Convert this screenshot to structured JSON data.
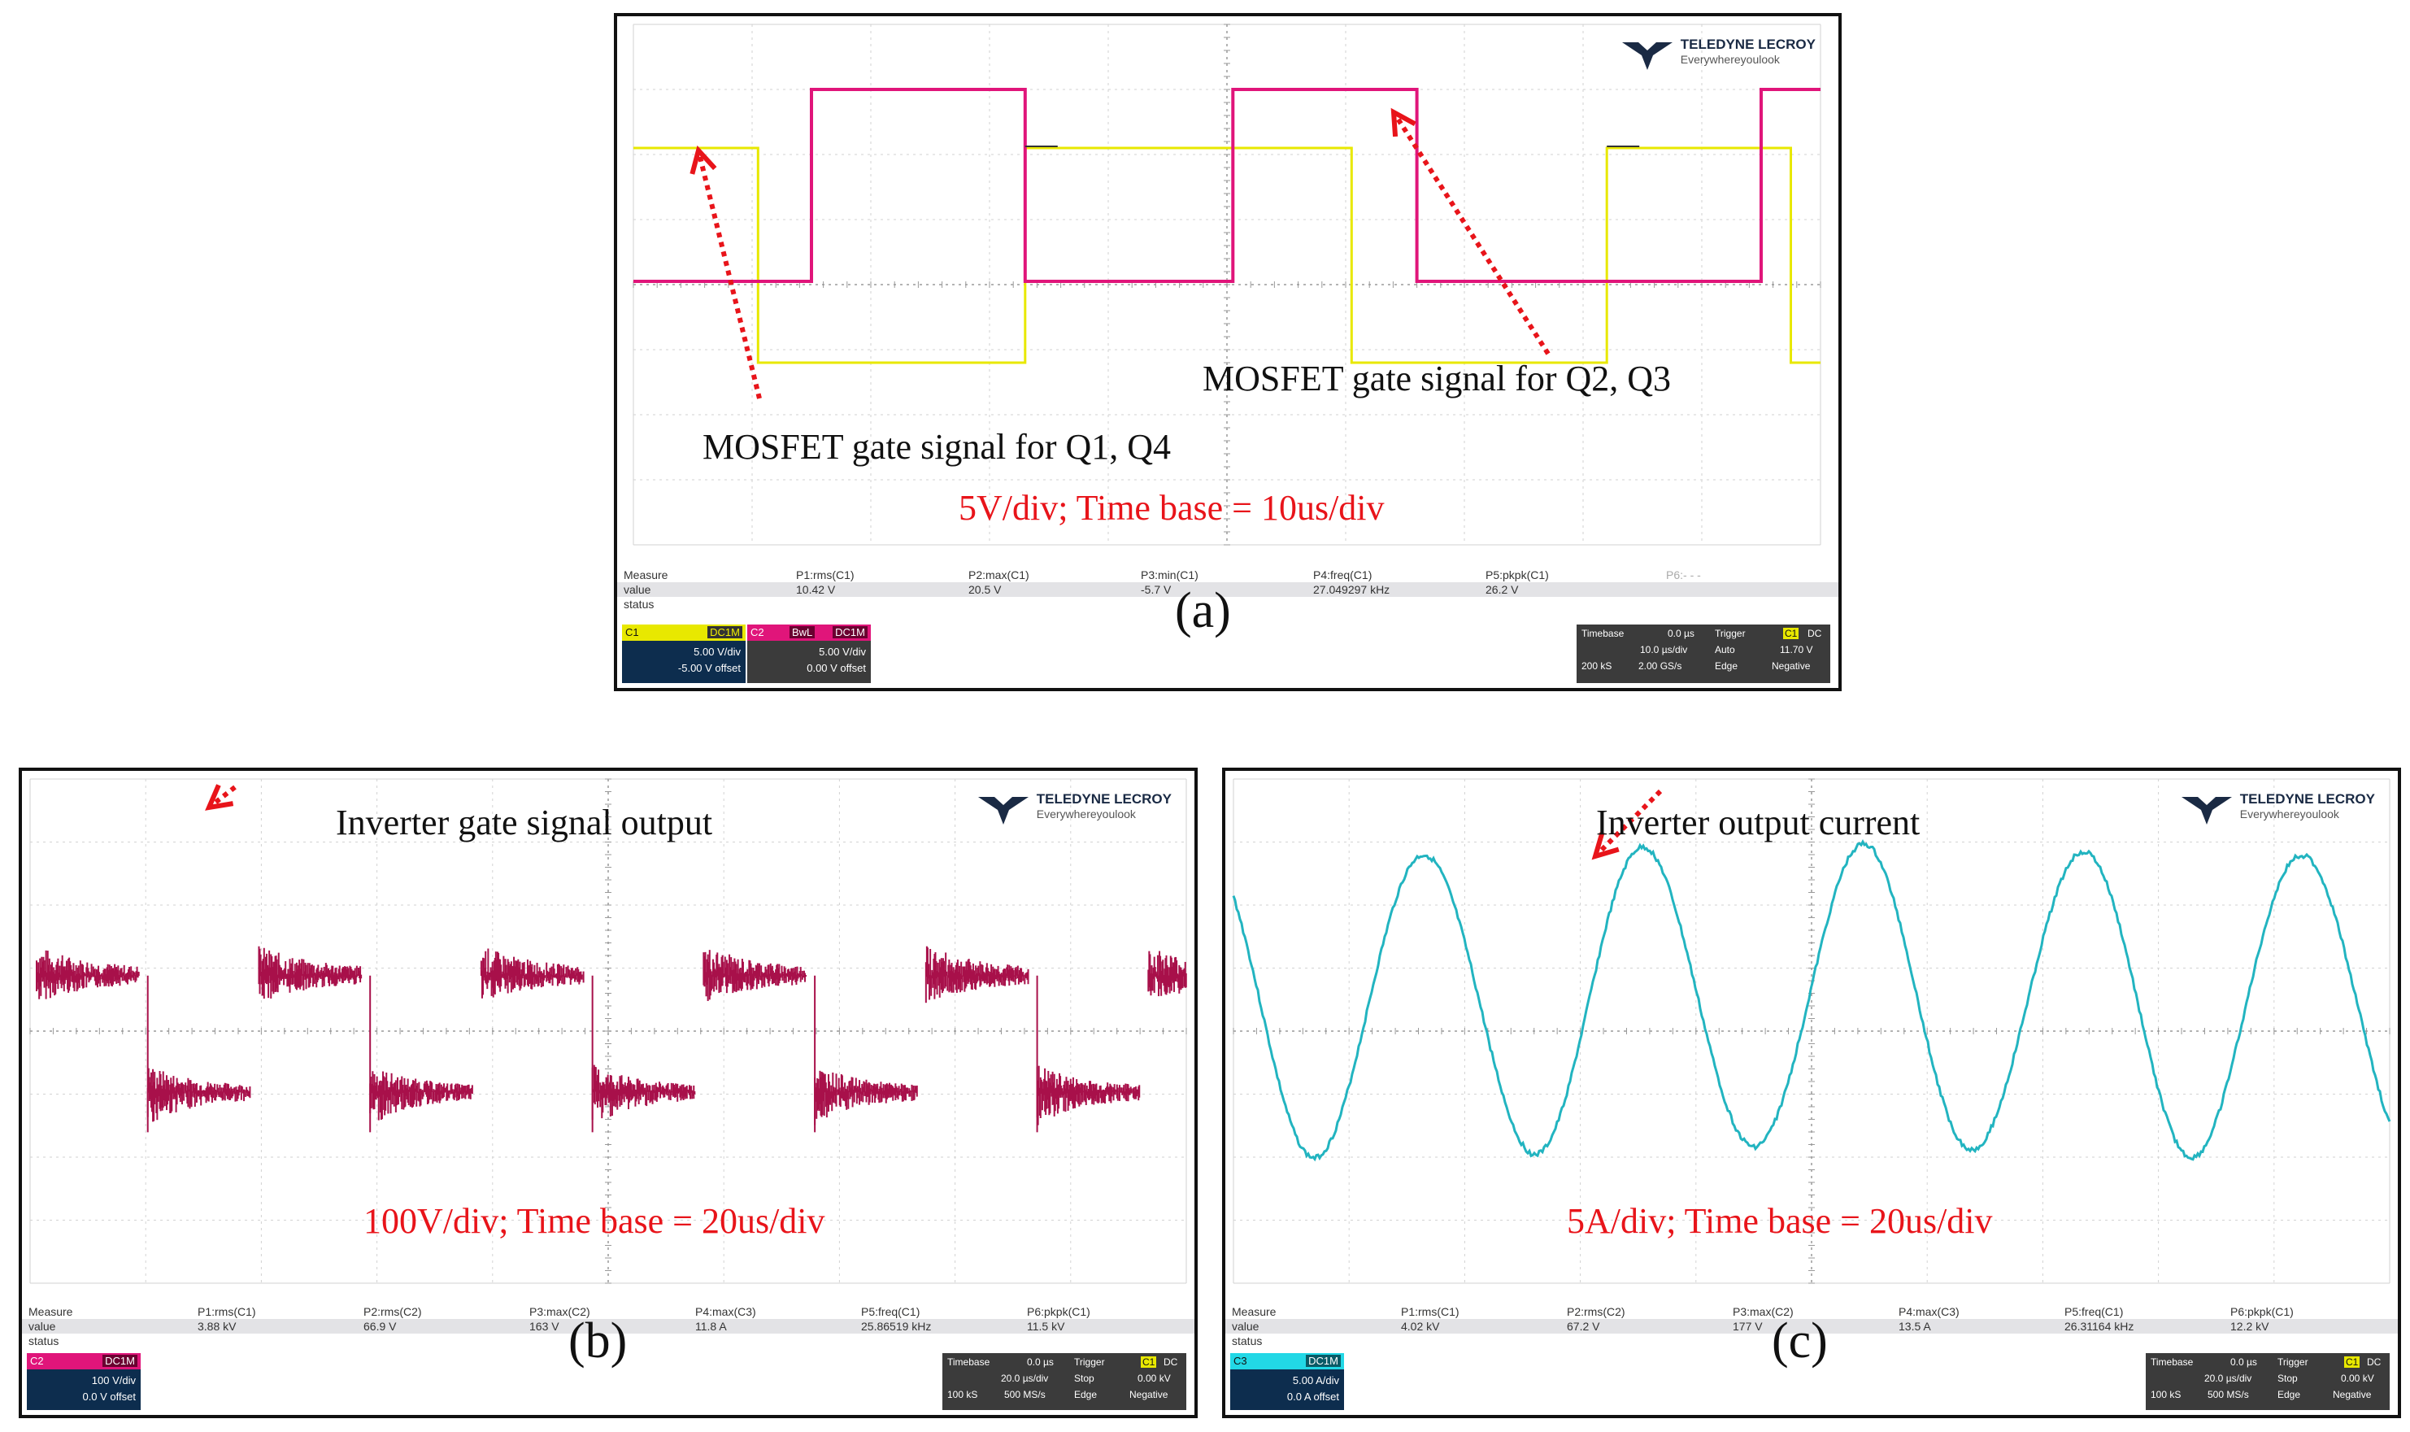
{
  "chart_data": [
    {
      "type": "line",
      "panel_label": "(a)",
      "series": [
        {
          "color": "#e8e800",
          "points": [
            [
              0,
              2.1
            ],
            [
              2.1,
              2.1
            ],
            [
              2.1,
              -1.2
            ],
            [
              6.6,
              -1.2
            ],
            [
              6.6,
              2.1
            ],
            [
              12.1,
              2.1
            ],
            [
              12.1,
              -1.2
            ],
            [
              16.4,
              -1.2
            ],
            [
              16.4,
              2.1
            ],
            [
              19.5,
              2.1
            ],
            [
              19.5,
              -1.2
            ],
            [
              20,
              -1.2
            ]
          ]
        },
        {
          "color": "#e0157a",
          "points": [
            [
              0,
              0.05
            ],
            [
              3.0,
              0.05
            ],
            [
              3.0,
              3.0
            ],
            [
              6.6,
              3.0
            ],
            [
              6.6,
              0.05
            ],
            [
              10.1,
              0.05
            ],
            [
              10.1,
              3.0
            ],
            [
              13.2,
              3.0
            ],
            [
              13.2,
              0.05
            ],
            [
              19.0,
              0.05
            ],
            [
              19.0,
              3.0
            ],
            [
              20,
              3.0
            ]
          ]
        }
      ],
      "annotations": {
        "q23": "MOSFET gate signal for Q2, Q3",
        "q14": "MOSFET gate signal for Q1, Q4",
        "scale": "5V/div; Time base = 10us/div"
      },
      "measure": {
        "header": [
          "Measure",
          "P1:rms(C1)",
          "P2:max(C1)",
          "P3:min(C1)",
          "P4:freq(C1)",
          "P5:pkpk(C1)",
          "P6:- - -"
        ],
        "values": [
          "value",
          "10.42 V",
          "20.5 V",
          "-5.7 V",
          "27.049297 kHz",
          "26.2 V",
          ""
        ],
        "status": "status"
      },
      "channels": [
        {
          "name": "C1",
          "coupling": "DC1M",
          "vdiv": "5.00 V/div",
          "offset": "-5.00 V offset",
          "color": "#e8e800"
        },
        {
          "name": "C2",
          "coupling": "DC1M",
          "extra": "BwL",
          "vdiv": "5.00 V/div",
          "offset": "0.00 V offset",
          "color": "#e0157a"
        }
      ],
      "timebase": {
        "label": "Timebase",
        "delay": "0.0 µs",
        "tdiv": "10.0 µs/div",
        "samples": "200 kS",
        "rate": "2.00 GS/s"
      },
      "trigger": {
        "label": "Trigger",
        "ch": "C1",
        "coupling": "DC",
        "mode": "Auto",
        "level": "11.70 V",
        "type": "Edge",
        "slope": "Negative"
      }
    },
    {
      "type": "line",
      "panel_label": "(b)",
      "series": [
        {
          "color": "#a8104a",
          "description": "inverter gate signal output, bipolar pulses with ringing"
        }
      ],
      "annotations": {
        "title": "Inverter gate signal output",
        "scale": "100V/div; Time base = 20us/div"
      },
      "measure": {
        "header": [
          "Measure",
          "P1:rms(C1)",
          "P2:rms(C2)",
          "P3:max(C2)",
          "P4:max(C3)",
          "P5:freq(C1)",
          "P6:pkpk(C1)"
        ],
        "values": [
          "value",
          "3.88 kV",
          "66.9 V",
          "163 V",
          "11.8 A",
          "25.86519 kHz",
          "11.5 kV"
        ],
        "status": "status"
      },
      "channels": [
        {
          "name": "C2",
          "coupling": "DC1M",
          "vdiv": "100 V/div",
          "offset": "0.0 V offset",
          "color": "#e0157a"
        }
      ],
      "timebase": {
        "label": "Timebase",
        "delay": "0.0 µs",
        "tdiv": "20.0 µs/div",
        "samples": "100 kS",
        "rate": "500 MS/s"
      },
      "trigger": {
        "label": "Trigger",
        "ch": "C1",
        "coupling": "DC",
        "mode": "Stop",
        "level": "0.00 kV",
        "type": "Edge",
        "slope": "Negative"
      }
    },
    {
      "type": "line",
      "panel_label": "(c)",
      "series": [
        {
          "color": "#22b4c0",
          "description": "inverter output current, sinusoid"
        }
      ],
      "annotations": {
        "title": "Inverter output current",
        "scale": "5A/div; Time base = 20us/div"
      },
      "measure": {
        "header": [
          "Measure",
          "P1:rms(C1)",
          "P2:rms(C2)",
          "P3:max(C2)",
          "P4:max(C3)",
          "P5:freq(C1)",
          "P6:pkpk(C1)"
        ],
        "values": [
          "value",
          "4.02 kV",
          "67.2 V",
          "177 V",
          "13.5 A",
          "26.31164 kHz",
          "12.2 kV"
        ],
        "status": "status"
      },
      "channels": [
        {
          "name": "C3",
          "coupling": "DC1M",
          "vdiv": "5.00 A/div",
          "offset": "0.0 A offset",
          "color": "#22d8e6"
        }
      ],
      "timebase": {
        "label": "Timebase",
        "delay": "0.0 µs",
        "tdiv": "20.0 µs/div",
        "samples": "100 kS",
        "rate": "500 MS/s"
      },
      "trigger": {
        "label": "Trigger",
        "ch": "C1",
        "coupling": "DC",
        "mode": "Stop",
        "level": "0.00 kV",
        "type": "Edge",
        "slope": "Negative"
      }
    }
  ],
  "logo": {
    "brand": "TELEDYNE LECROY",
    "tagline": "Everywhereyoulook"
  }
}
